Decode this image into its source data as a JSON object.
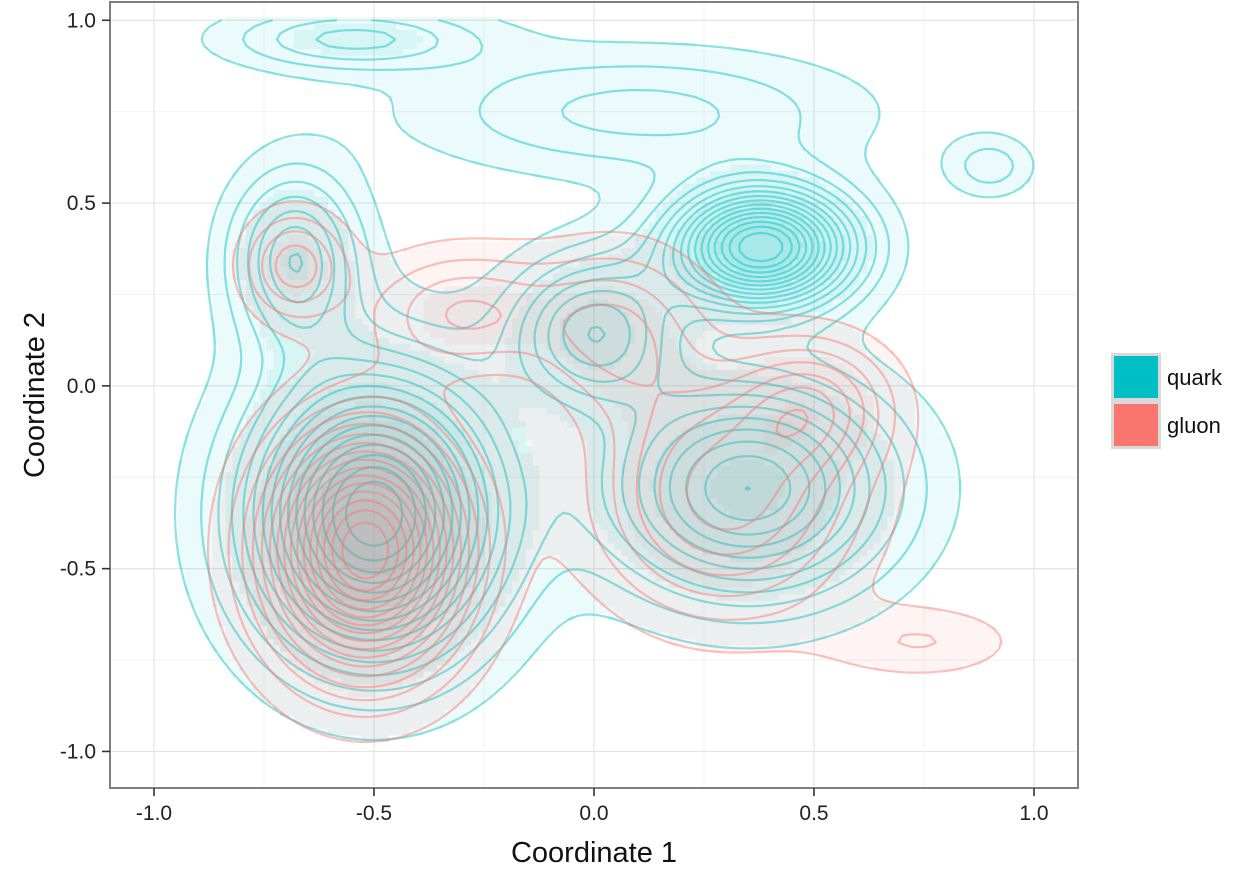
{
  "chart_data": {
    "type": "density_contour",
    "title": "",
    "xlabel": "Coordinate 1",
    "ylabel": "Coordinate 2",
    "xlim": [
      -1.1,
      1.1
    ],
    "ylim": [
      -1.1,
      1.05
    ],
    "xticks": [
      -1.0,
      -0.5,
      0.0,
      0.5,
      1.0
    ],
    "xtick_labels": [
      "-1.0",
      "-0.5",
      "0.0",
      "0.5",
      "1.0"
    ],
    "yticks": [
      -1.0,
      -0.5,
      0.0,
      0.5,
      1.0
    ],
    "ytick_labels": [
      "-1.0",
      "-0.5",
      "0.0",
      "0.5",
      "1.0"
    ],
    "grid": true,
    "legend_position": "right",
    "series": [
      {
        "name": "quark",
        "color": "#00BFC4",
        "modes": [
          {
            "x": 0.38,
            "y": 0.38,
            "sx": 0.14,
            "sy": 0.11,
            "w": 1.0
          },
          {
            "x": -0.5,
            "y": -0.35,
            "sx": 0.19,
            "sy": 0.26,
            "w": 1.0
          },
          {
            "x": 0.35,
            "y": -0.28,
            "sx": 0.22,
            "sy": 0.2,
            "w": 0.65
          },
          {
            "x": 0.0,
            "y": 0.15,
            "sx": 0.13,
            "sy": 0.14,
            "w": 0.45
          },
          {
            "x": -0.68,
            "y": 0.35,
            "sx": 0.1,
            "sy": 0.16,
            "w": 0.4
          },
          {
            "x": -0.55,
            "y": 0.95,
            "sx": 0.2,
            "sy": 0.06,
            "w": 0.25
          },
          {
            "x": 0.1,
            "y": 0.75,
            "sx": 0.35,
            "sy": 0.12,
            "w": 0.2
          },
          {
            "x": 0.9,
            "y": 0.6,
            "sx": 0.07,
            "sy": 0.06,
            "w": 0.15
          }
        ]
      },
      {
        "name": "gluon",
        "color": "#F8766D",
        "modes": [
          {
            "x": -0.52,
            "y": -0.45,
            "sx": 0.15,
            "sy": 0.22,
            "w": 1.3
          },
          {
            "x": -0.68,
            "y": 0.33,
            "sx": 0.08,
            "sy": 0.1,
            "w": 0.35
          },
          {
            "x": 0.3,
            "y": -0.3,
            "sx": 0.2,
            "sy": 0.22,
            "w": 0.5
          },
          {
            "x": 0.5,
            "y": -0.05,
            "sx": 0.12,
            "sy": 0.12,
            "w": 0.35
          },
          {
            "x": -0.3,
            "y": 0.2,
            "sx": 0.15,
            "sy": 0.12,
            "w": 0.3
          },
          {
            "x": 0.05,
            "y": 0.15,
            "sx": 0.14,
            "sy": 0.16,
            "w": 0.3
          },
          {
            "x": 0.75,
            "y": -0.7,
            "sx": 0.15,
            "sy": 0.07,
            "w": 0.15
          }
        ]
      }
    ]
  },
  "legend": {
    "items": [
      {
        "label": "quark",
        "color": "#00BFC4"
      },
      {
        "label": "gluon",
        "color": "#F8766D"
      }
    ]
  }
}
